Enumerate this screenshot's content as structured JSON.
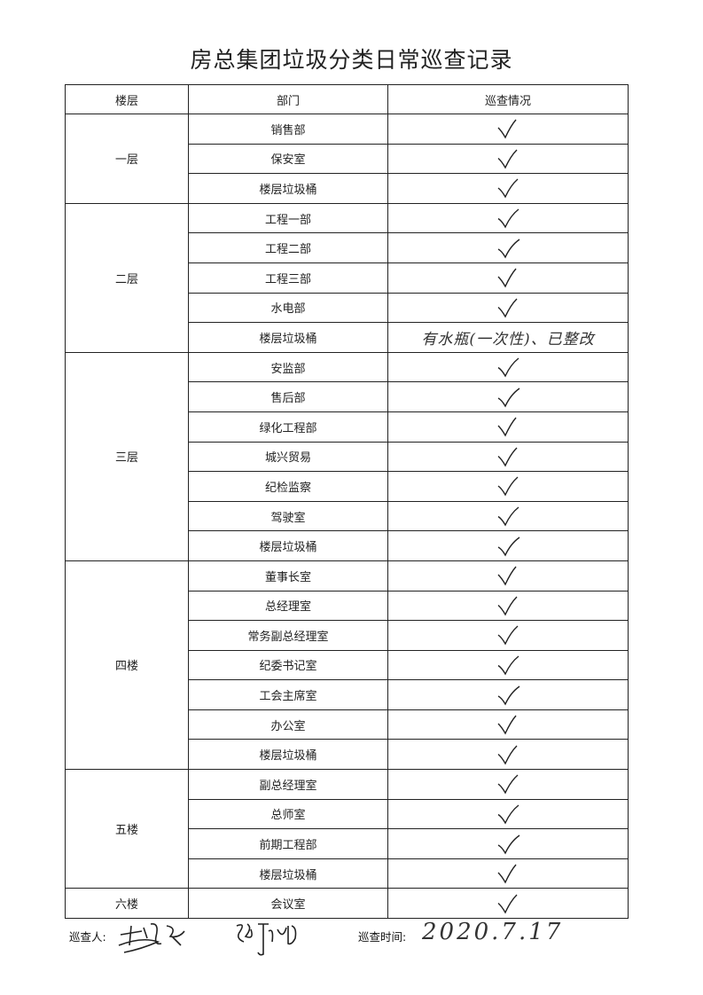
{
  "title": "房总集团垃圾分类日常巡查记录",
  "table": {
    "headers": [
      "楼层",
      "部门",
      "巡查情况"
    ],
    "groups": [
      {
        "floor": "一层",
        "rows": [
          {
            "dept": "销售部",
            "status": "check"
          },
          {
            "dept": "保安室",
            "status": "check"
          },
          {
            "dept": "楼层垃圾桶",
            "status": "check"
          }
        ]
      },
      {
        "floor": "二层",
        "rows": [
          {
            "dept": "工程一部",
            "status": "check"
          },
          {
            "dept": "工程二部",
            "status": "check"
          },
          {
            "dept": "工程三部",
            "status": "check"
          },
          {
            "dept": "水电部",
            "status": "check"
          },
          {
            "dept": "楼层垃圾桶",
            "status": "remark",
            "remark": "有水瓶(一次性)、已整改"
          }
        ]
      },
      {
        "floor": "三层",
        "rows": [
          {
            "dept": "安监部",
            "status": "check"
          },
          {
            "dept": "售后部",
            "status": "check"
          },
          {
            "dept": "绿化工程部",
            "status": "check"
          },
          {
            "dept": "城兴贸易",
            "status": "check"
          },
          {
            "dept": "纪检监察",
            "status": "check"
          },
          {
            "dept": "驾驶室",
            "status": "check"
          },
          {
            "dept": "楼层垃圾桶",
            "status": "check"
          }
        ]
      },
      {
        "floor": "四楼",
        "rows": [
          {
            "dept": "董事长室",
            "status": "check"
          },
          {
            "dept": "总经理室",
            "status": "check"
          },
          {
            "dept": "常务副总经理室",
            "status": "check"
          },
          {
            "dept": "纪委书记室",
            "status": "check"
          },
          {
            "dept": "工会主席室",
            "status": "check"
          },
          {
            "dept": "办公室",
            "status": "check"
          },
          {
            "dept": "楼层垃圾桶",
            "status": "check"
          }
        ]
      },
      {
        "floor": "五楼",
        "rows": [
          {
            "dept": "副总经理室",
            "status": "check"
          },
          {
            "dept": "总师室",
            "status": "check"
          },
          {
            "dept": "前期工程部",
            "status": "check"
          },
          {
            "dept": "楼层垃圾桶",
            "status": "check"
          }
        ]
      },
      {
        "floor": "六楼",
        "rows": [
          {
            "dept": "会议室",
            "status": "check"
          }
        ]
      }
    ]
  },
  "footer": {
    "inspector_label": "巡查人:",
    "time_label": "巡查时间:",
    "date": "2020.7.17"
  },
  "icons": {
    "check": "checkmark-icon",
    "signature": "handwritten-signature"
  }
}
